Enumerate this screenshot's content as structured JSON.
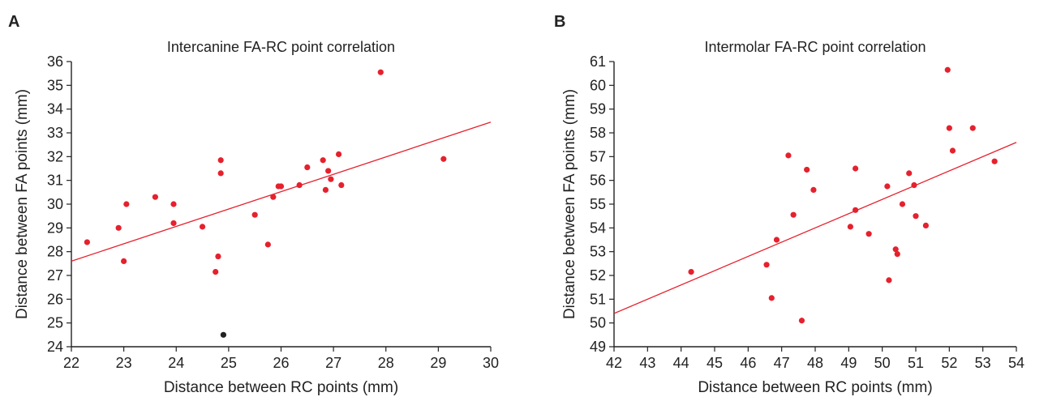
{
  "colors": {
    "points": "#e5212d",
    "highlight_point": "#222222",
    "fit_line": "#e5212d",
    "axis": "#222222"
  },
  "chart_data": [
    {
      "panel_label": "A",
      "type": "scatter",
      "title": "Intercanine FA-RC point correlation",
      "xlabel": "Distance between RC points (mm)",
      "ylabel": "Distance between FA points (mm)",
      "xlim": [
        22,
        30
      ],
      "ylim": [
        24,
        36
      ],
      "xticks": [
        "22",
        "23",
        "24",
        "25",
        "26",
        "27",
        "28",
        "29",
        "30"
      ],
      "yticks": [
        "24",
        "25",
        "26",
        "27",
        "28",
        "29",
        "30",
        "31",
        "32",
        "33",
        "34",
        "35",
        "36"
      ],
      "grid": false,
      "legend": "none",
      "points": [
        {
          "x": 22.3,
          "y": 28.4
        },
        {
          "x": 22.9,
          "y": 29.0
        },
        {
          "x": 23.0,
          "y": 27.6
        },
        {
          "x": 23.05,
          "y": 30.0
        },
        {
          "x": 23.6,
          "y": 30.3
        },
        {
          "x": 23.95,
          "y": 30.0
        },
        {
          "x": 23.95,
          "y": 29.2
        },
        {
          "x": 24.5,
          "y": 29.05
        },
        {
          "x": 24.75,
          "y": 27.15
        },
        {
          "x": 24.8,
          "y": 27.8
        },
        {
          "x": 24.85,
          "y": 31.85
        },
        {
          "x": 24.85,
          "y": 31.3
        },
        {
          "x": 25.5,
          "y": 29.55
        },
        {
          "x": 25.75,
          "y": 28.3
        },
        {
          "x": 25.85,
          "y": 30.3
        },
        {
          "x": 25.95,
          "y": 30.75
        },
        {
          "x": 26.0,
          "y": 30.75
        },
        {
          "x": 26.35,
          "y": 30.8
        },
        {
          "x": 26.5,
          "y": 31.55
        },
        {
          "x": 26.8,
          "y": 31.85
        },
        {
          "x": 26.85,
          "y": 30.6
        },
        {
          "x": 26.9,
          "y": 31.4
        },
        {
          "x": 26.95,
          "y": 31.05
        },
        {
          "x": 27.1,
          "y": 32.1
        },
        {
          "x": 27.15,
          "y": 30.8
        },
        {
          "x": 27.9,
          "y": 35.55
        },
        {
          "x": 29.1,
          "y": 31.9
        }
      ],
      "highlight_points": [
        {
          "x": 24.9,
          "y": 24.5
        }
      ],
      "fit_line": {
        "x": [
          22,
          30
        ],
        "y": [
          27.6,
          33.45
        ]
      }
    },
    {
      "panel_label": "B",
      "type": "scatter",
      "title": "Intermolar FA-RC point correlation",
      "xlabel": "Distance between RC points (mm)",
      "ylabel": "Distance between FA points (mm)",
      "xlim": [
        42,
        54
      ],
      "ylim": [
        49,
        61
      ],
      "xticks": [
        "42",
        "43",
        "44",
        "45",
        "46",
        "47",
        "48",
        "49",
        "50",
        "51",
        "52",
        "53",
        "54"
      ],
      "yticks": [
        "49",
        "50",
        "51",
        "52",
        "53",
        "54",
        "55",
        "56",
        "57",
        "58",
        "59",
        "60",
        "61"
      ],
      "grid": false,
      "legend": "none",
      "points": [
        {
          "x": 44.3,
          "y": 52.15
        },
        {
          "x": 46.55,
          "y": 52.45
        },
        {
          "x": 46.7,
          "y": 51.05
        },
        {
          "x": 46.85,
          "y": 53.5
        },
        {
          "x": 47.2,
          "y": 57.05
        },
        {
          "x": 47.35,
          "y": 54.55
        },
        {
          "x": 47.6,
          "y": 50.1
        },
        {
          "x": 47.75,
          "y": 56.45
        },
        {
          "x": 47.95,
          "y": 55.6
        },
        {
          "x": 49.05,
          "y": 54.05
        },
        {
          "x": 49.2,
          "y": 56.5
        },
        {
          "x": 49.2,
          "y": 54.75
        },
        {
          "x": 49.6,
          "y": 53.75
        },
        {
          "x": 50.15,
          "y": 55.75
        },
        {
          "x": 50.2,
          "y": 51.8
        },
        {
          "x": 50.4,
          "y": 53.1
        },
        {
          "x": 50.45,
          "y": 52.9
        },
        {
          "x": 50.6,
          "y": 55.0
        },
        {
          "x": 50.8,
          "y": 56.3
        },
        {
          "x": 50.95,
          "y": 55.8
        },
        {
          "x": 51.0,
          "y": 54.5
        },
        {
          "x": 51.3,
          "y": 54.1
        },
        {
          "x": 51.95,
          "y": 60.65
        },
        {
          "x": 52.0,
          "y": 58.2
        },
        {
          "x": 52.1,
          "y": 57.25
        },
        {
          "x": 52.7,
          "y": 58.2
        },
        {
          "x": 53.35,
          "y": 56.8
        }
      ],
      "highlight_points": [],
      "fit_line": {
        "x": [
          42,
          54
        ],
        "y": [
          50.4,
          57.6
        ]
      }
    }
  ]
}
